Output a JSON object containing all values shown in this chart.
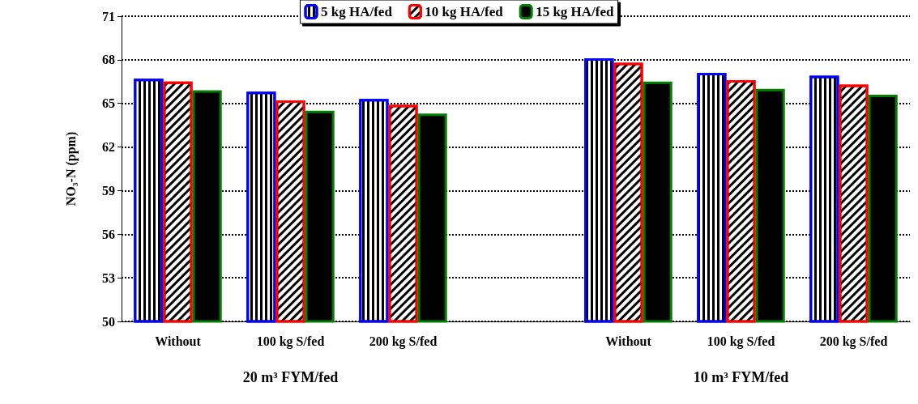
{
  "chart_data": {
    "type": "bar",
    "ylabel": "NO₃-N (ppm)",
    "categories": [
      "Without",
      "100 kg S/fed",
      "200 kg S/fed",
      null,
      "Without",
      "100 kg S/fed",
      "200 kg S/fed"
    ],
    "series": [
      {
        "name": "5 kg HA/fed",
        "color": "#0000ff",
        "values": [
          66.7,
          65.8,
          65.3,
          null,
          68.1,
          67.1,
          66.9
        ]
      },
      {
        "name": "10 kg HA/fed",
        "color": "#ff0000",
        "values": [
          66.5,
          65.2,
          64.9,
          null,
          67.8,
          66.6,
          66.3
        ]
      },
      {
        "name": "15 kg HA/fed",
        "color": "#008000",
        "values": [
          65.9,
          64.5,
          64.3,
          null,
          66.5,
          66.0,
          65.6
        ]
      }
    ],
    "ylim": [
      50,
      71
    ],
    "yticks": [
      50,
      53,
      56,
      59,
      62,
      65,
      68,
      71
    ],
    "grid": "y",
    "legend": "top",
    "annotations": [
      "20 m³ FYM/fed",
      "10 m³ FYM/fed"
    ]
  }
}
